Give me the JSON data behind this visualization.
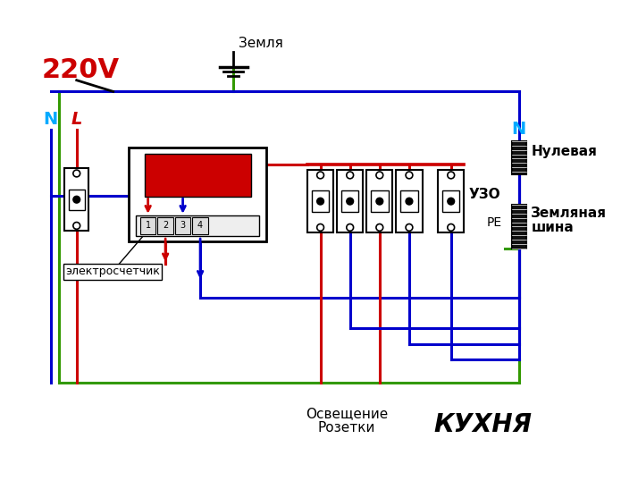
{
  "bg_color": "#ffffff",
  "text_220V": "220V",
  "text_N_left": "N",
  "text_L": "L",
  "text_ground": "Земля",
  "text_meter": "электросчетчик",
  "text_UZO": "УЗО",
  "text_N_right": "N",
  "text_nulevaya": "Нулевая",
  "text_zemlyanaya1": "Земляная",
  "text_zemlyanaya2": "шина",
  "text_PE": "PE",
  "text_osveschenie": "Освещение",
  "text_rozetki": "Розетки",
  "text_kukhnya": "КУХНЯ",
  "color_red": "#cc0000",
  "color_blue": "#0000cc",
  "color_green": "#339900",
  "color_black": "#000000",
  "color_cyan": "#00aaff"
}
